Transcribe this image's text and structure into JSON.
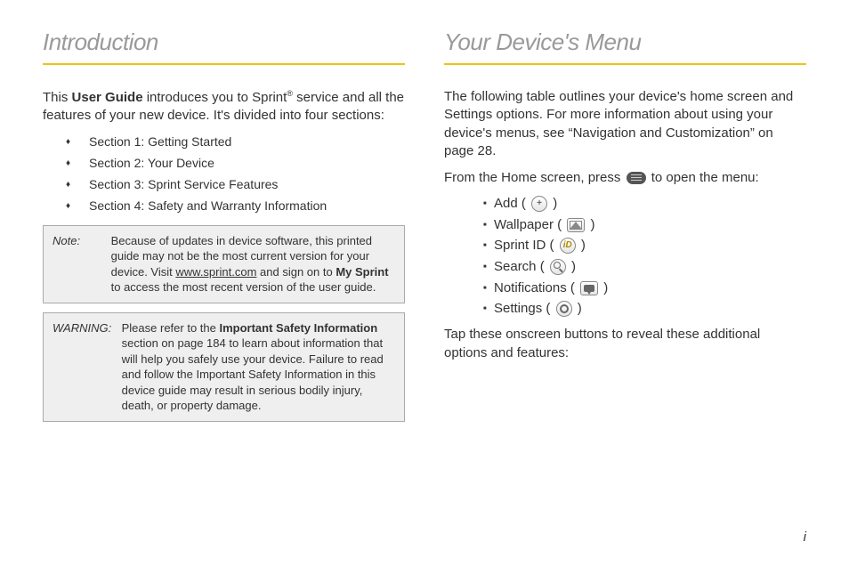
{
  "page_number": "i",
  "left": {
    "heading": "Introduction",
    "intro": {
      "pre": "This ",
      "bold": "User Guide",
      "mid": " introduces you to Sprint",
      "sup": "®",
      "post": " service and all the features of your new device. It's divided into four sections:"
    },
    "sections": [
      "Section 1:  Getting Started",
      "Section 2:  Your Device",
      "Section 3:  Sprint Service Features",
      "Section 4:  Safety and Warranty Information"
    ],
    "note": {
      "label": "Note:",
      "pre": "Because of updates in device software, this printed guide may not be the most current version for your device. Visit ",
      "link": "www.sprint.com",
      "mid": " and sign on to ",
      "bold": "My Sprint",
      "post": " to access the most recent version of the user guide."
    },
    "warning": {
      "label": "WARNING:",
      "pre": "Please refer to the ",
      "bold": "Important Safety Information",
      "post": " section on page 184 to learn about information that will help you safely use your device. Failure to read and follow the Important Safety Information in this device guide may result in serious bodily injury, death, or property damage."
    }
  },
  "right": {
    "heading": "Your Device's Menu",
    "intro": "The following table outlines your device's home screen and Settings options. For more information about using your device's menus, see “Navigation and Customization” on page 28.",
    "from_home_pre": "From the Home screen, press ",
    "from_home_post": " to open the menu:",
    "menu_items": [
      {
        "label": "Add",
        "icon": "plus"
      },
      {
        "label": "Wallpaper",
        "icon": "picture"
      },
      {
        "label": "Sprint ID",
        "icon": "id"
      },
      {
        "label": "Search",
        "icon": "search"
      },
      {
        "label": "Notifications",
        "icon": "bubble"
      },
      {
        "label": "Settings",
        "icon": "gear"
      }
    ],
    "tap_text": "Tap these onscreen buttons to reveal these additional options and features:"
  }
}
